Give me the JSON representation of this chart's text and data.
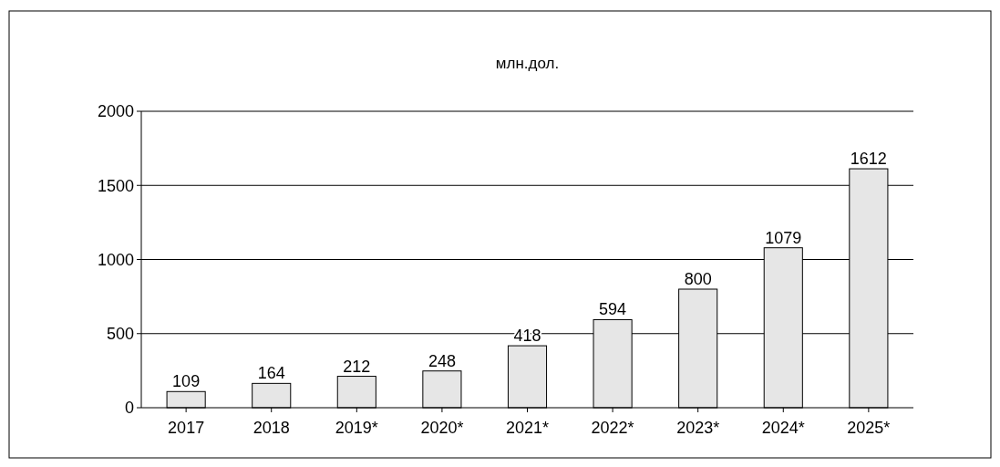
{
  "chart_data": {
    "type": "bar",
    "title": "млн.дол.",
    "categories": [
      "2017",
      "2018",
      "2019*",
      "2020*",
      "2021*",
      "2022*",
      "2023*",
      "2024*",
      "2025*"
    ],
    "values": [
      109,
      164,
      212,
      248,
      418,
      594,
      800,
      1079,
      1612
    ],
    "color": "#e6e6e6",
    "ylim": [
      0,
      2000
    ],
    "yticks": [
      0,
      500,
      1000,
      1500,
      2000
    ],
    "grid": "y",
    "data_labels": true
  }
}
